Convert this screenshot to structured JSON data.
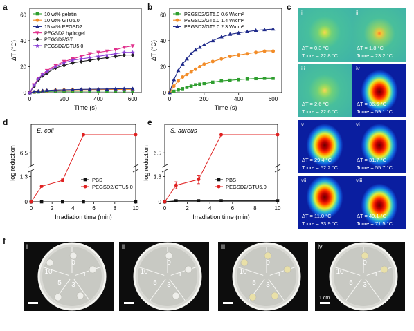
{
  "panels": {
    "a": {
      "letter": "a",
      "ylabel": "ΔT (°C)",
      "xlabel": "Time (s)",
      "legend": [
        "10 wt% gelatin",
        "10 wt% GTU5.0",
        "15 wt% PEGSD2",
        "PEGSD2 hydrogel",
        "PEGSD2/GT",
        "PEGSD2/GTU5.0"
      ]
    },
    "b": {
      "letter": "b",
      "ylabel": "ΔT (°C)",
      "xlabel": "Time (s)",
      "legend": [
        "PEGSD2/GT5.0  0.6 W/cm²",
        "PEGSD2/GT5.0  1.4 W/cm²",
        "PEGSD2/GT5.0  2.3 W/cm²"
      ]
    },
    "c": {
      "letter": "c",
      "tiles": [
        {
          "label": "i",
          "dt": "ΔT = 0.3 °C",
          "tcore": "Tcore = 22.8 °C"
        },
        {
          "label": "ii",
          "dt": "ΔT = 1.8 °C",
          "tcore": "Tcore = 23.2 °C"
        },
        {
          "label": "iii",
          "dt": "ΔT = 2.6 °C",
          "tcore": "Tcore = 22.6 °C"
        },
        {
          "label": "iv",
          "dt": "ΔT = 36.6 °C",
          "tcore": "Tcore = 59.1 °C"
        },
        {
          "label": "v",
          "dt": "ΔT = 29.4 °C",
          "tcore": "Tcore = 52.2 °C"
        },
        {
          "label": "vi",
          "dt": "ΔT = 31.7 °C",
          "tcore": "Tcore = 55.7 °C"
        },
        {
          "label": "vii",
          "dt": "ΔT = 11.0 °C",
          "tcore": "Tcore = 33.9 °C"
        },
        {
          "label": "viii",
          "dt": "ΔT = 49.1 °C",
          "tcore": "Tcore = 71.5 °C"
        }
      ]
    },
    "d": {
      "letter": "d",
      "organism": "E. coli",
      "ylabel": "log reduction",
      "xlabel": "Irradiation time (min)",
      "legend": [
        "PBS",
        "PEGSD2/GTU5.0"
      ]
    },
    "e": {
      "letter": "e",
      "organism": "S. aureus",
      "ylabel": "log reduction",
      "xlabel": "Irradiation time (min)",
      "legend": [
        "PBS",
        "PEGSD2/GTU5.0"
      ]
    },
    "f": {
      "letter": "f",
      "dishes": [
        {
          "label": "i"
        },
        {
          "label": "ii"
        },
        {
          "label": "iii"
        },
        {
          "label": "iv"
        }
      ],
      "sector_labels": [
        "0",
        "1",
        "3",
        "5",
        "10"
      ],
      "scale_text": "1 cm"
    }
  },
  "chart_data": [
    {
      "panel": "a",
      "type": "line",
      "xlabel": "Time (s)",
      "ylabel": "ΔT (°C)",
      "xlim": [
        0,
        650
      ],
      "ylim": [
        0,
        65
      ],
      "xticks": [
        0,
        200,
        400,
        600
      ],
      "yticks": [
        0,
        20,
        40,
        60
      ],
      "x": [
        0,
        25,
        50,
        75,
        100,
        150,
        200,
        250,
        300,
        350,
        400,
        450,
        500,
        550,
        600
      ],
      "series": [
        {
          "name": "10 wt% gelatin",
          "color": "#2e9e2e",
          "values": [
            0,
            0.3,
            0.5,
            0.7,
            0.8,
            1,
            1,
            1.1,
            1.1,
            1.2,
            1.2,
            1.2,
            1.3,
            1.3,
            1.3
          ]
        },
        {
          "name": "10 wt% GTU5.0",
          "color": "#f28c28",
          "values": [
            0,
            0.5,
            1,
            1.2,
            1.5,
            1.8,
            2,
            2.1,
            2.2,
            2.3,
            2.3,
            2.4,
            2.4,
            2.4,
            2.5
          ]
        },
        {
          "name": "15 wt% PEGSD2",
          "color": "#1f2a8a",
          "values": [
            0,
            0.6,
            1.1,
            1.4,
            1.7,
            2,
            2.2,
            2.3,
            2.5,
            2.6,
            2.7,
            2.8,
            2.9,
            3,
            3
          ]
        },
        {
          "name": "PEGSD2 hydrogel",
          "color": "#e0308c",
          "values": [
            0,
            6,
            11,
            14,
            17,
            21,
            24,
            26,
            28,
            30,
            31,
            32,
            33,
            35,
            36
          ]
        },
        {
          "name": "PEGSD2/GT",
          "color": "#222222",
          "values": [
            0,
            5,
            10,
            13,
            15,
            19,
            21,
            23,
            24,
            25,
            26,
            27,
            28,
            29,
            29
          ]
        },
        {
          "name": "PEGSD2/GTU5.0",
          "color": "#8a3fd6",
          "values": [
            0,
            5.5,
            10.5,
            14,
            16,
            20,
            23,
            25,
            26,
            27,
            28,
            29,
            30,
            31,
            31
          ]
        }
      ]
    },
    {
      "panel": "b",
      "type": "line",
      "xlabel": "Time (s)",
      "ylabel": "ΔT (°C)",
      "xlim": [
        0,
        650
      ],
      "ylim": [
        0,
        65
      ],
      "xticks": [
        0,
        200,
        400,
        600
      ],
      "yticks": [
        0,
        20,
        40,
        60
      ],
      "x": [
        0,
        25,
        50,
        75,
        100,
        125,
        150,
        175,
        200,
        250,
        300,
        350,
        400,
        450,
        500,
        550,
        600
      ],
      "series": [
        {
          "name": "PEGSD2/GT5.0  0.6 W/cm²",
          "color": "#2e9e2e",
          "values": [
            0,
            1,
            2,
            3,
            4,
            5,
            6,
            6.5,
            7,
            8,
            9,
            9.5,
            10,
            10.5,
            10.8,
            11,
            11
          ]
        },
        {
          "name": "PEGSD2/GT5.0  1.4 W/cm²",
          "color": "#f28c28",
          "values": [
            0,
            5,
            9,
            12,
            14,
            16,
            18,
            20,
            22,
            24,
            26,
            28,
            29,
            30,
            31,
            32,
            32
          ]
        },
        {
          "name": "PEGSD2/GT5.0  2.3 W/cm²",
          "color": "#1f2a8a",
          "values": [
            0,
            10,
            17,
            22,
            26,
            30,
            33,
            35,
            37,
            40,
            43,
            45,
            46,
            47,
            48,
            48.5,
            49
          ]
        }
      ]
    },
    {
      "panel": "d",
      "type": "line",
      "xlabel": "Irradiation time (min)",
      "ylabel": "log reduction",
      "xlim": [
        0,
        10
      ],
      "xticks": [
        0,
        2,
        4,
        6,
        8,
        10
      ],
      "yticks": [
        "0",
        "1.3",
        "6.5"
      ],
      "axis_break": true,
      "x": [
        0,
        1,
        3,
        5,
        10
      ],
      "series": [
        {
          "name": "PBS",
          "color": "#111111",
          "values": [
            0,
            0,
            0,
            0,
            0
          ]
        },
        {
          "name": "PEGSD2/GTU5.0",
          "color": "#e02020",
          "values": [
            0,
            0.8,
            1.1,
            7.2,
            7.2
          ],
          "errors": [
            0,
            0.05,
            0.08,
            0,
            0
          ]
        }
      ]
    },
    {
      "panel": "e",
      "type": "line",
      "xlabel": "Irradiation time (min)",
      "ylabel": "log reduction",
      "xlim": [
        0,
        10
      ],
      "xticks": [
        0,
        2,
        4,
        6,
        8,
        10
      ],
      "yticks": [
        "0",
        "1.3",
        "6.5"
      ],
      "axis_break": true,
      "x": [
        0,
        1,
        3,
        5,
        10
      ],
      "series": [
        {
          "name": "PBS",
          "color": "#111111",
          "values": [
            0,
            0.05,
            0.05,
            0.05,
            0.05
          ]
        },
        {
          "name": "PEGSD2/GTU5.0",
          "color": "#e02020",
          "values": [
            0,
            0.85,
            1.15,
            7.2,
            7.2
          ],
          "errors": [
            0,
            0.18,
            0.22,
            0,
            0
          ]
        }
      ]
    }
  ]
}
